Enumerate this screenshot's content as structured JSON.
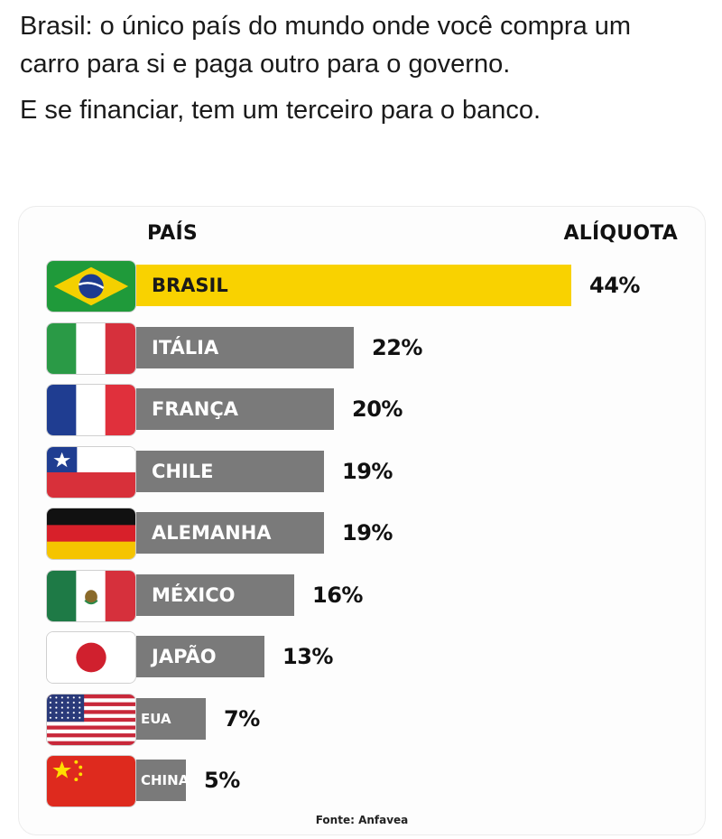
{
  "post": {
    "line1": "Brasil: o único país do mundo onde você compra um carro para si e paga outro para o governo.",
    "line2": "E se financiar, tem um terceiro para o banco."
  },
  "chart_data": {
    "type": "bar",
    "orientation": "horizontal",
    "column_headers": {
      "category": "PAÍS",
      "value": "ALÍQUOTA"
    },
    "categories": [
      "BRASIL",
      "ITÁLIA",
      "FRANÇA",
      "CHILE",
      "ALEMANHA",
      "MÉXICO",
      "JAPÃO",
      "EUA",
      "CHINA"
    ],
    "values": [
      44,
      22,
      20,
      19,
      19,
      16,
      13,
      7,
      5
    ],
    "value_labels": [
      "44%",
      "22%",
      "20%",
      "19%",
      "19%",
      "16%",
      "13%",
      "7%",
      "5%"
    ],
    "unit": "%",
    "highlight_category": "BRASIL",
    "colors": {
      "highlight": "#f9d200",
      "default": "#7a7a7a"
    },
    "flag_icons": [
      "brazil-flag-icon",
      "italy-flag-icon",
      "france-flag-icon",
      "chile-flag-icon",
      "germany-flag-icon",
      "mexico-flag-icon",
      "japan-flag-icon",
      "usa-flag-icon",
      "china-flag-icon"
    ],
    "source": "Fonte: Anfavea"
  }
}
